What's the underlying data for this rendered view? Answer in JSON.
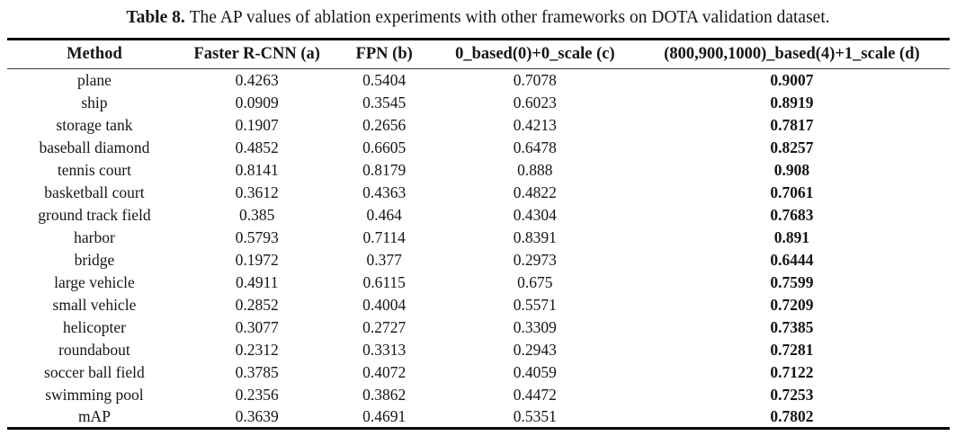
{
  "caption": {
    "label": "Table 8.",
    "text": "The AP values of ablation experiments with other frameworks on DOTA validation dataset."
  },
  "table": {
    "columns": [
      "Method",
      "Faster R-CNN (a)",
      "FPN (b)",
      "0_based(0)+0_scale (c)",
      "(800,900,1000)_based(4)+1_scale (d)"
    ],
    "emphasized_column": "(800,900,1000)_based(4)+1_scale (d)",
    "rows": [
      {
        "method": "plane",
        "values": [
          "0.4263",
          "0.5404",
          "0.7078",
          "0.9007"
        ]
      },
      {
        "method": "ship",
        "values": [
          "0.0909",
          "0.3545",
          "0.6023",
          "0.8919"
        ]
      },
      {
        "method": "storage tank",
        "values": [
          "0.1907",
          "0.2656",
          "0.4213",
          "0.7817"
        ]
      },
      {
        "method": "baseball diamond",
        "values": [
          "0.4852",
          "0.6605",
          "0.6478",
          "0.8257"
        ]
      },
      {
        "method": "tennis court",
        "values": [
          "0.8141",
          "0.8179",
          "0.888",
          "0.908"
        ]
      },
      {
        "method": "basketball court",
        "values": [
          "0.3612",
          "0.4363",
          "0.4822",
          "0.7061"
        ]
      },
      {
        "method": "ground track field",
        "values": [
          "0.385",
          "0.464",
          "0.4304",
          "0.7683"
        ]
      },
      {
        "method": "harbor",
        "values": [
          "0.5793",
          "0.7114",
          "0.8391",
          "0.891"
        ]
      },
      {
        "method": "bridge",
        "values": [
          "0.1972",
          "0.377",
          "0.2973",
          "0.6444"
        ]
      },
      {
        "method": "large vehicle",
        "values": [
          "0.4911",
          "0.6115",
          "0.675",
          "0.7599"
        ]
      },
      {
        "method": "small vehicle",
        "values": [
          "0.2852",
          "0.4004",
          "0.5571",
          "0.7209"
        ]
      },
      {
        "method": "helicopter",
        "values": [
          "0.3077",
          "0.2727",
          "0.3309",
          "0.7385"
        ]
      },
      {
        "method": "roundabout",
        "values": [
          "0.2312",
          "0.3313",
          "0.2943",
          "0.7281"
        ]
      },
      {
        "method": "soccer ball field",
        "values": [
          "0.3785",
          "0.4072",
          "0.4059",
          "0.7122"
        ]
      },
      {
        "method": "swimming pool",
        "values": [
          "0.2356",
          "0.3862",
          "0.4472",
          "0.7253"
        ]
      },
      {
        "method": "mAP",
        "values": [
          "0.3639",
          "0.4691",
          "0.5351",
          "0.7802"
        ]
      }
    ]
  }
}
